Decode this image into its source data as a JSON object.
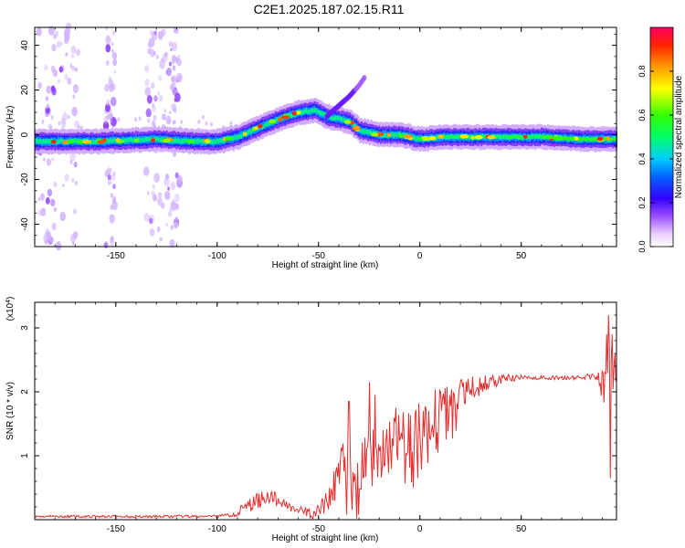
{
  "figure": {
    "title": "C2E1.2025.187.02.15.R11"
  },
  "chart_data": [
    {
      "type": "heatmap",
      "title": "C2E1.2025.187.02.15.R11",
      "xlabel": "Height of straight line (km)",
      "ylabel": "Frequency (Hz)",
      "xlim": [
        -190,
        97
      ],
      "ylim": [
        -50,
        48
      ],
      "xticks": [
        -150,
        -100,
        -50,
        0,
        50
      ],
      "yticks": [
        -40,
        -20,
        0,
        20,
        40
      ],
      "colorbar": {
        "label": "Normalized spectral amplitude",
        "range": [
          0.0,
          1.0
        ],
        "ticks": [
          0.0,
          0.2,
          0.4,
          0.6,
          0.8
        ],
        "colormap": "rainbow"
      },
      "ridge": {
        "x": [
          -190,
          -160,
          -130,
          -110,
          -100,
          -90,
          -80,
          -70,
          -60,
          -52,
          -46,
          -40,
          -35,
          -30,
          -20,
          -10,
          0,
          10,
          20,
          40,
          60,
          80,
          90,
          97
        ],
        "y": [
          -3,
          -3,
          -2,
          -3,
          -3,
          -1,
          3,
          7,
          10,
          11,
          8,
          7,
          6,
          2,
          0,
          0,
          -2,
          -1,
          -1,
          -1,
          -1,
          -2,
          -2,
          -2
        ]
      },
      "branch": {
        "x": [
          -46,
          -40,
          -35,
          -30,
          -27
        ],
        "y": [
          8,
          13,
          17,
          22,
          26
        ]
      }
    },
    {
      "type": "line",
      "xlabel": "Height of straight line (km)",
      "ylabel": "SNR (10 * v/v)",
      "multiplier": "(x10",
      "multiplier_exp": "4",
      "multiplier_close": ")",
      "xlim": [
        -190,
        97
      ],
      "ylim": [
        0,
        3.4
      ],
      "xticks": [
        -150,
        -100,
        -50,
        0,
        50
      ],
      "yticks": [
        1,
        2,
        3
      ],
      "series": [
        {
          "color": "#e03030",
          "baseline": {
            "x": [
              -190,
              -150,
              -100,
              -92,
              -80,
              -75,
              -70,
              -60,
              -52,
              -46,
              -42,
              -38,
              -34,
              -30,
              -25,
              -20,
              -15,
              -10,
              -5,
              0,
              5,
              10,
              15,
              20,
              25,
              30,
              40,
              50,
              60,
              70,
              80,
              90,
              97
            ],
            "y": [
              0.05,
              0.05,
              0.05,
              0.08,
              0.3,
              0.38,
              0.3,
              0.15,
              0.08,
              0.25,
              0.55,
              0.85,
              0.8,
              0.85,
              0.95,
              1.05,
              1.15,
              1.25,
              1.35,
              1.5,
              1.6,
              1.75,
              1.85,
              1.95,
              2.05,
              2.1,
              2.2,
              2.22,
              2.22,
              2.22,
              2.22,
              2.25,
              2.2
            ]
          },
          "noise": {
            "x": [
              -190,
              -100,
              -90,
              -80,
              -70,
              -60,
              -50,
              -45,
              -40,
              -30,
              -20,
              -10,
              0,
              10,
              20,
              30,
              40,
              50,
              60,
              80,
              88,
              92,
              97
            ],
            "y": [
              0.02,
              0.02,
              0.06,
              0.14,
              0.1,
              0.06,
              0.12,
              0.25,
              0.35,
              0.45,
              0.5,
              0.45,
              0.4,
              0.35,
              0.25,
              0.15,
              0.08,
              0.04,
              0.03,
              0.03,
              0.1,
              0.7,
              0.4
            ]
          },
          "spikes": [
            {
              "x": -35,
              "y": 1.85
            },
            {
              "x": -25,
              "y": 2.15
            },
            {
              "x": -22,
              "y": 1.95
            },
            {
              "x": -18,
              "y": 1.4
            },
            {
              "x": -12,
              "y": 1.75
            },
            {
              "x": 93,
              "y": 3.2
            },
            {
              "x": 94,
              "y": 0.65
            },
            {
              "x": 95,
              "y": 2.9
            }
          ]
        }
      ]
    }
  ]
}
